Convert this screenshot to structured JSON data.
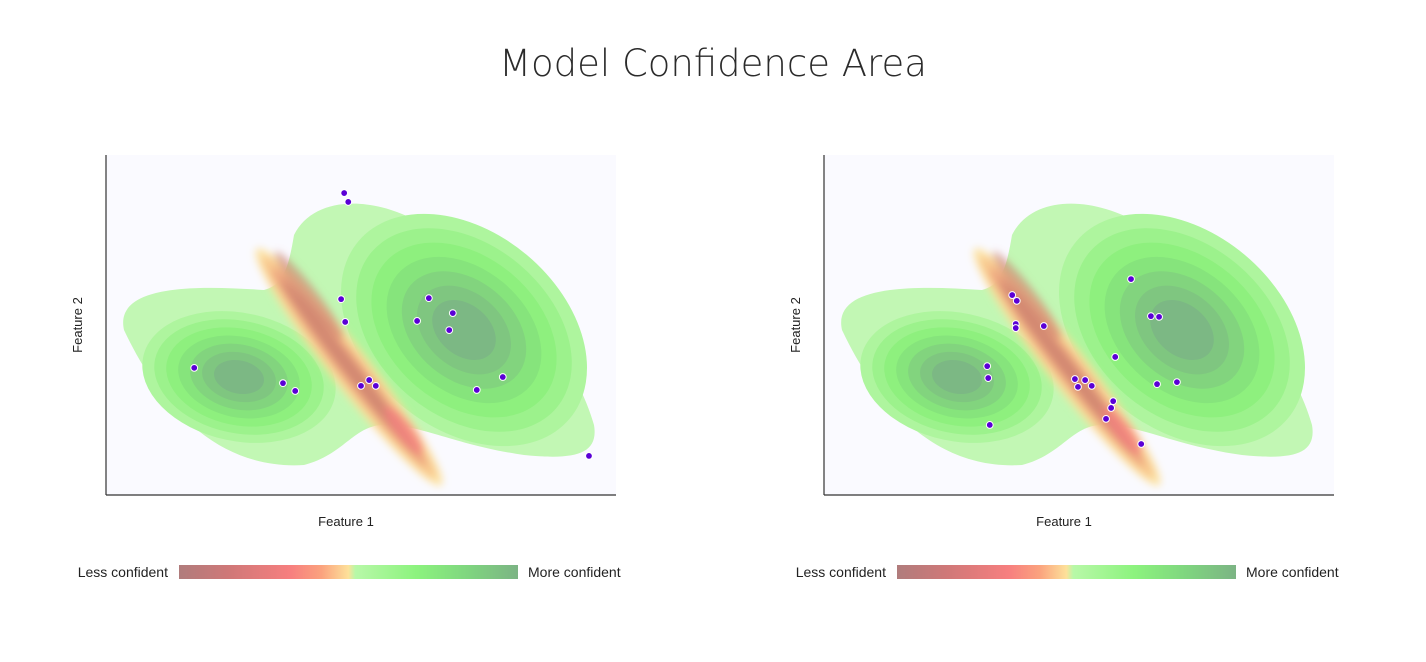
{
  "title": "Model Confidence Area",
  "colors": {
    "point": "#5b00d6",
    "background": "#fafaff",
    "less_confident": "#b07c7c",
    "mid": "#fde19a",
    "more_confident": "#7cb484"
  },
  "chart_data": [
    {
      "type": "scatter",
      "overlay": "confidence contour (filled density)",
      "xlabel": "Feature 1",
      "ylabel": "Feature 2",
      "xlim": [
        0,
        10
      ],
      "ylim": [
        0,
        10
      ],
      "ticks": false,
      "legend": {
        "low_label": "Less confident",
        "high_label": "More confident",
        "placement": "bottom"
      },
      "points": [
        [
          4.67,
          8.88
        ],
        [
          4.75,
          8.62
        ],
        [
          4.61,
          5.76
        ],
        [
          4.69,
          5.09
        ],
        [
          6.33,
          5.79
        ],
        [
          6.8,
          5.35
        ],
        [
          6.1,
          5.12
        ],
        [
          6.73,
          4.85
        ],
        [
          1.73,
          3.74
        ],
        [
          3.47,
          3.29
        ],
        [
          3.71,
          3.06
        ],
        [
          5.16,
          3.38
        ],
        [
          5.0,
          3.21
        ],
        [
          5.29,
          3.21
        ],
        [
          7.27,
          3.09
        ],
        [
          7.78,
          3.47
        ],
        [
          9.47,
          1.15
        ]
      ]
    },
    {
      "type": "scatter",
      "overlay": "confidence contour (filled density)",
      "xlabel": "Feature 1",
      "ylabel": "Feature 2",
      "xlim": [
        0,
        10
      ],
      "ylim": [
        0,
        10
      ],
      "ticks": false,
      "legend": {
        "low_label": "Less confident",
        "high_label": "More confident",
        "placement": "bottom"
      },
      "points": [
        [
          3.69,
          5.88
        ],
        [
          3.78,
          5.71
        ],
        [
          3.76,
          5.03
        ],
        [
          3.76,
          4.91
        ],
        [
          4.31,
          4.97
        ],
        [
          6.02,
          6.35
        ],
        [
          6.41,
          5.26
        ],
        [
          6.57,
          5.24
        ],
        [
          5.71,
          4.06
        ],
        [
          3.2,
          3.79
        ],
        [
          3.22,
          3.44
        ],
        [
          4.92,
          3.41
        ],
        [
          5.12,
          3.38
        ],
        [
          4.98,
          3.18
        ],
        [
          5.25,
          3.21
        ],
        [
          6.53,
          3.26
        ],
        [
          6.92,
          3.32
        ],
        [
          5.67,
          2.76
        ],
        [
          5.63,
          2.56
        ],
        [
          5.53,
          2.24
        ],
        [
          3.25,
          2.06
        ],
        [
          6.22,
          1.5
        ]
      ]
    }
  ]
}
